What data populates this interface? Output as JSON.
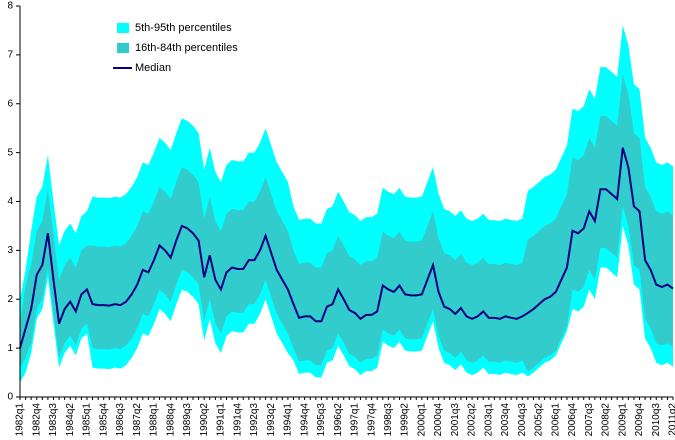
{
  "chart_data": {
    "type": "fan",
    "categories": [
      "1982q1",
      null,
      null,
      "1982q4",
      null,
      null,
      "1983q3",
      null,
      null,
      "1984q2",
      null,
      null,
      "1985q1",
      null,
      null,
      "1985q4",
      null,
      null,
      "1986q3",
      null,
      null,
      "1987q2",
      null,
      null,
      "1988q1",
      null,
      null,
      "1988q4",
      null,
      null,
      "1989q3",
      null,
      null,
      "1990q2",
      null,
      null,
      "1991q1",
      null,
      null,
      "1991q4",
      null,
      null,
      "1992q3",
      null,
      null,
      "1993q2",
      null,
      null,
      "1994q1",
      null,
      null,
      "1994q4",
      null,
      null,
      "1995q3",
      null,
      null,
      "1996q2",
      null,
      null,
      "1997q1",
      null,
      null,
      "1997q4",
      null,
      null,
      "1998q3",
      null,
      null,
      "1999q2",
      null,
      null,
      "2000q1",
      null,
      null,
      "2000q4",
      null,
      null,
      "2001q3",
      null,
      null,
      "2002q2",
      null,
      null,
      "2003q1",
      null,
      null,
      "2003q4",
      null,
      null,
      "2004q3",
      null,
      null,
      "2005q2",
      null,
      null,
      "2006q1",
      null,
      null,
      "2006q4",
      null,
      null,
      "2007q3",
      null,
      null,
      "2008q2",
      null,
      null,
      "2009q1",
      null,
      null,
      "2009q4",
      null,
      null,
      "2010q3",
      null,
      null,
      "2011q2"
    ],
    "ylim": [
      0,
      8
    ],
    "yticks": [
      0,
      1,
      2,
      3,
      4,
      5,
      6,
      7,
      8
    ],
    "grid": false,
    "legend": "top-left",
    "series": [
      {
        "name": "5th-95th percentiles",
        "color": "#00ffff",
        "lower": [
          0.3,
          0.5,
          0.9,
          1.6,
          1.8,
          2.45,
          1.5,
          0.6,
          0.9,
          1.05,
          0.85,
          1.2,
          1.3,
          0.6,
          0.58,
          0.58,
          0.57,
          0.6,
          0.58,
          0.65,
          0.8,
          1.0,
          1.3,
          1.25,
          1.5,
          1.8,
          1.7,
          1.55,
          1.9,
          2.2,
          2.15,
          2.05,
          1.9,
          1.15,
          1.6,
          1.1,
          0.9,
          1.25,
          1.35,
          1.32,
          1.32,
          1.5,
          1.5,
          1.7,
          2.0,
          1.65,
          1.3,
          1.1,
          0.9,
          0.75,
          0.47,
          0.5,
          0.5,
          0.4,
          0.4,
          0.7,
          0.75,
          1.05,
          0.85,
          0.63,
          0.57,
          0.45,
          0.53,
          0.53,
          0.6,
          1.13,
          1.05,
          1.0,
          1.13,
          0.95,
          0.93,
          0.93,
          0.95,
          1.25,
          1.55,
          1.0,
          0.7,
          0.65,
          0.55,
          0.67,
          0.5,
          0.45,
          0.5,
          0.6,
          0.47,
          0.47,
          0.45,
          0.5,
          0.47,
          0.45,
          0.5,
          0.42,
          0.5,
          0.6,
          0.7,
          0.75,
          0.85,
          1.1,
          1.35,
          1.8,
          1.75,
          1.85,
          2.2,
          2.0,
          2.65,
          2.65,
          2.55,
          2.45,
          3.5,
          3.1,
          2.3,
          2.2,
          1.2,
          1.0,
          0.7,
          0.65,
          0.7,
          0.62
        ],
        "upper": [
          2.0,
          2.6,
          3.4,
          4.1,
          4.3,
          4.95,
          4.0,
          3.1,
          3.4,
          3.55,
          3.35,
          3.7,
          3.8,
          4.1,
          4.08,
          4.08,
          4.07,
          4.1,
          4.08,
          4.15,
          4.3,
          4.5,
          4.8,
          4.75,
          5.0,
          5.3,
          5.2,
          5.05,
          5.4,
          5.7,
          5.65,
          5.55,
          5.4,
          4.65,
          5.1,
          4.6,
          4.4,
          4.75,
          4.85,
          4.82,
          4.82,
          5.0,
          5.0,
          5.2,
          5.5,
          5.15,
          4.8,
          4.6,
          4.4,
          3.9,
          3.62,
          3.65,
          3.65,
          3.55,
          3.55,
          3.85,
          3.9,
          4.2,
          4.0,
          3.78,
          3.72,
          3.6,
          3.68,
          3.68,
          3.75,
          4.28,
          4.2,
          4.15,
          4.28,
          4.1,
          4.08,
          4.08,
          4.1,
          4.4,
          4.7,
          4.15,
          3.85,
          3.8,
          3.7,
          3.82,
          3.65,
          3.6,
          3.65,
          3.75,
          3.62,
          3.62,
          3.6,
          3.65,
          3.62,
          3.6,
          3.65,
          4.22,
          4.3,
          4.4,
          4.5,
          4.55,
          4.65,
          4.9,
          5.15,
          5.9,
          5.85,
          5.95,
          6.3,
          6.1,
          6.75,
          6.75,
          6.65,
          6.55,
          7.6,
          7.2,
          6.4,
          6.3,
          5.3,
          5.1,
          4.8,
          4.75,
          4.8,
          4.72
        ]
      },
      {
        "name": "16th-84th percentiles",
        "color": "#33cccc",
        "lower": [
          0.6,
          0.8,
          1.1,
          1.8,
          2.0,
          2.65,
          1.7,
          0.8,
          1.1,
          1.25,
          1.05,
          1.4,
          1.5,
          1.0,
          0.98,
          0.98,
          0.97,
          1.0,
          0.98,
          1.05,
          1.2,
          1.4,
          1.7,
          1.65,
          1.9,
          2.2,
          2.1,
          1.95,
          2.3,
          2.6,
          2.55,
          2.45,
          2.3,
          1.55,
          2.0,
          1.5,
          1.3,
          1.65,
          1.75,
          1.72,
          1.72,
          1.9,
          1.9,
          2.1,
          2.4,
          2.05,
          1.7,
          1.5,
          1.3,
          1.0,
          0.72,
          0.75,
          0.75,
          0.65,
          0.65,
          0.95,
          1.0,
          1.3,
          1.1,
          0.88,
          0.82,
          0.7,
          0.78,
          0.78,
          0.85,
          1.38,
          1.3,
          1.25,
          1.38,
          1.2,
          1.18,
          1.18,
          1.2,
          1.5,
          1.8,
          1.25,
          0.95,
          0.9,
          0.8,
          0.92,
          0.75,
          0.7,
          0.75,
          0.85,
          0.72,
          0.72,
          0.7,
          0.75,
          0.72,
          0.7,
          0.75,
          0.52,
          0.6,
          0.7,
          0.8,
          0.85,
          0.95,
          1.2,
          1.45,
          2.2,
          2.15,
          2.25,
          2.6,
          2.4,
          3.05,
          3.05,
          2.95,
          2.85,
          3.9,
          3.5,
          2.7,
          2.6,
          1.6,
          1.4,
          1.1,
          1.05,
          1.1,
          1.02
        ],
        "upper": [
          1.5,
          2.3,
          2.7,
          3.4,
          3.6,
          4.25,
          3.3,
          2.4,
          2.7,
          2.85,
          2.65,
          3.0,
          3.1,
          3.1,
          3.08,
          3.08,
          3.07,
          3.1,
          3.08,
          3.15,
          3.3,
          3.5,
          3.8,
          3.75,
          4.0,
          4.3,
          4.2,
          4.05,
          4.4,
          4.7,
          4.65,
          4.55,
          4.4,
          3.65,
          4.1,
          3.6,
          3.4,
          3.75,
          3.85,
          3.82,
          3.82,
          4.0,
          4.0,
          4.2,
          4.5,
          4.15,
          3.8,
          3.6,
          3.4,
          3.0,
          2.72,
          2.75,
          2.75,
          2.65,
          2.65,
          2.95,
          3.0,
          3.3,
          3.1,
          2.88,
          2.82,
          2.7,
          2.78,
          2.78,
          2.85,
          3.38,
          3.3,
          3.25,
          3.38,
          3.2,
          3.18,
          3.18,
          3.2,
          3.5,
          3.8,
          3.25,
          2.95,
          2.9,
          2.8,
          2.92,
          2.75,
          2.7,
          2.75,
          2.85,
          2.72,
          2.72,
          2.7,
          2.75,
          2.72,
          2.7,
          2.75,
          3.22,
          3.3,
          3.4,
          3.5,
          3.55,
          3.65,
          3.9,
          4.15,
          4.9,
          4.85,
          4.95,
          5.3,
          5.1,
          5.75,
          5.75,
          5.65,
          5.55,
          6.6,
          6.2,
          5.4,
          5.3,
          4.3,
          4.1,
          3.8,
          3.75,
          3.8,
          3.72
        ]
      },
      {
        "name": "Median",
        "color": "#000080",
        "values": [
          1.0,
          1.4,
          1.8,
          2.5,
          2.7,
          3.35,
          2.4,
          1.5,
          1.8,
          1.95,
          1.75,
          2.1,
          2.2,
          1.9,
          1.88,
          1.88,
          1.87,
          1.9,
          1.88,
          1.95,
          2.1,
          2.3,
          2.6,
          2.55,
          2.8,
          3.1,
          3.0,
          2.85,
          3.2,
          3.5,
          3.45,
          3.35,
          3.2,
          2.45,
          2.9,
          2.4,
          2.2,
          2.55,
          2.65,
          2.62,
          2.62,
          2.8,
          2.8,
          3.0,
          3.3,
          2.95,
          2.6,
          2.4,
          2.2,
          1.9,
          1.62,
          1.65,
          1.65,
          1.55,
          1.55,
          1.85,
          1.9,
          2.2,
          2.0,
          1.78,
          1.72,
          1.6,
          1.68,
          1.68,
          1.75,
          2.28,
          2.2,
          2.15,
          2.28,
          2.1,
          2.08,
          2.08,
          2.1,
          2.4,
          2.7,
          2.15,
          1.85,
          1.8,
          1.7,
          1.82,
          1.65,
          1.6,
          1.65,
          1.75,
          1.62,
          1.62,
          1.6,
          1.65,
          1.62,
          1.6,
          1.65,
          1.72,
          1.8,
          1.9,
          2.0,
          2.05,
          2.15,
          2.4,
          2.65,
          3.4,
          3.35,
          3.45,
          3.8,
          3.6,
          4.25,
          4.25,
          4.15,
          4.05,
          5.1,
          4.7,
          3.9,
          3.8,
          2.8,
          2.6,
          2.3,
          2.25,
          2.3,
          2.22
        ]
      }
    ]
  }
}
